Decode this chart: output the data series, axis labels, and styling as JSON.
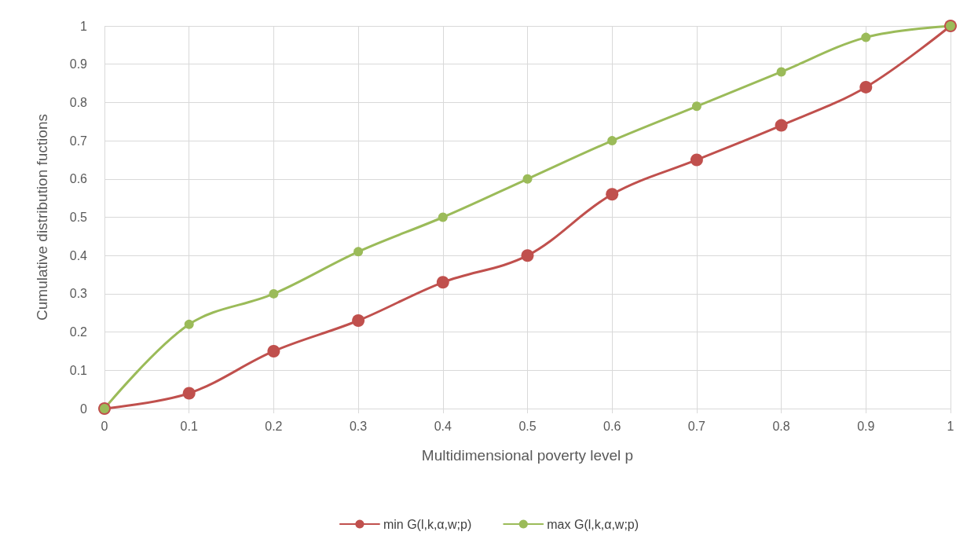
{
  "chart_data": {
    "type": "line",
    "xlabel": "Multidimensional poverty level p",
    "ylabel": "Cumulative distribution fuctions",
    "x": [
      0,
      0.1,
      0.2,
      0.3,
      0.4,
      0.5,
      0.6,
      0.7,
      0.8,
      0.9,
      1
    ],
    "series": [
      {
        "name": "min G(l,k,α,w;p)",
        "color": "#c0504d",
        "values": [
          0,
          0.04,
          0.15,
          0.23,
          0.33,
          0.4,
          0.56,
          0.65,
          0.74,
          0.84,
          1
        ]
      },
      {
        "name": "max G(l,k,α,w;p)",
        "color": "#9bbb59",
        "values": [
          0,
          0.22,
          0.3,
          0.41,
          0.5,
          0.6,
          0.7,
          0.79,
          0.88,
          0.97,
          1
        ]
      }
    ],
    "xlim": [
      0,
      1
    ],
    "ylim": [
      0,
      1
    ],
    "xticks": [
      0,
      0.1,
      0.2,
      0.3,
      0.4,
      0.5,
      0.6,
      0.7,
      0.8,
      0.9,
      1
    ],
    "yticks": [
      0,
      0.1,
      0.2,
      0.3,
      0.4,
      0.5,
      0.6,
      0.7,
      0.8,
      0.9,
      1
    ],
    "grid": true,
    "legend": "bottom",
    "marker": "circle",
    "line_style": "solid"
  }
}
